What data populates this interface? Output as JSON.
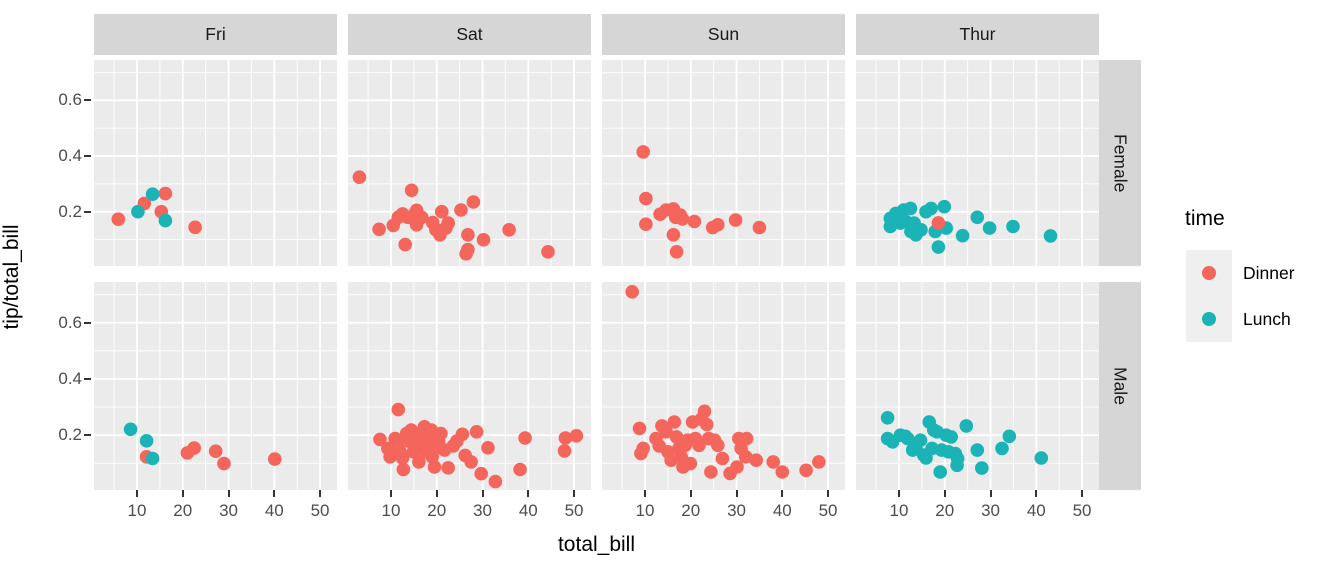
{
  "chart_data": {
    "type": "scatter",
    "title": "",
    "xlabel": "total_bill",
    "ylabel": "tip/total_bill",
    "facet_cols": [
      "Fri",
      "Sat",
      "Sun",
      "Thur"
    ],
    "facet_rows": [
      "Female",
      "Male"
    ],
    "x_ticks": [
      10,
      20,
      30,
      40,
      50
    ],
    "y_ticks": [
      0.2,
      0.4,
      0.6
    ],
    "x_minor": [
      5,
      15,
      25,
      35,
      45
    ],
    "y_minor": [
      0.1,
      0.3,
      0.5,
      0.7
    ],
    "xlim": [
      0.6,
      53.7
    ],
    "ylim": [
      0.005,
      0.745
    ],
    "grid": true,
    "legend": {
      "title": "time",
      "position": "right",
      "entries": [
        {
          "label": "Dinner",
          "color": "#F4655C"
        },
        {
          "label": "Lunch",
          "color": "#1BB3B5"
        }
      ]
    },
    "colors": {
      "panel_bg": "#EBEBEB",
      "strip_bg": "#D6D6D6",
      "grid": "#FFFFFF",
      "key_bg": "#EFEFEF",
      "tick_text": "#4D4D4D",
      "dinner": "#F4655C",
      "lunch": "#1BB3B5"
    },
    "facets": [
      {
        "row": "Female",
        "col": "Fri",
        "series": {
          "Dinner": [
            [
              5.9,
              0.173
            ],
            [
              11.6,
              0.23
            ],
            [
              15.3,
              0.2
            ],
            [
              16.2,
              0.265
            ],
            [
              22.7,
              0.144
            ]
          ],
          "Lunch": [
            [
              10.2,
              0.2
            ],
            [
              13.4,
              0.263
            ],
            [
              16.2,
              0.168
            ]
          ]
        }
      },
      {
        "row": "Female",
        "col": "Sat",
        "series": {
          "Dinner": [
            [
              3.1,
              0.324
            ],
            [
              14.5,
              0.277
            ],
            [
              7.4,
              0.137
            ],
            [
              10.5,
              0.151
            ],
            [
              11.6,
              0.18
            ],
            [
              12.5,
              0.192
            ],
            [
              13.7,
              0.18
            ],
            [
              15.1,
              0.191
            ],
            [
              15.6,
              0.205
            ],
            [
              16.7,
              0.18
            ],
            [
              15.6,
              0.153
            ],
            [
              13.1,
              0.082
            ],
            [
              19.1,
              0.161
            ],
            [
              19.8,
              0.135
            ],
            [
              20.7,
              0.117
            ],
            [
              21.1,
              0.2
            ],
            [
              22.0,
              0.141
            ],
            [
              22.5,
              0.159
            ],
            [
              25.3,
              0.206
            ],
            [
              28.0,
              0.235
            ],
            [
              26.8,
              0.117
            ],
            [
              26.8,
              0.064
            ],
            [
              26.4,
              0.049
            ],
            [
              30.2,
              0.099
            ],
            [
              35.8,
              0.135
            ],
            [
              44.3,
              0.056
            ]
          ],
          "Lunch": []
        }
      },
      {
        "row": "Female",
        "col": "Sun",
        "series": {
          "Dinner": [
            [
              9.6,
              0.415
            ],
            [
              10.2,
              0.247
            ],
            [
              10.2,
              0.155
            ],
            [
              13.3,
              0.191
            ],
            [
              14.6,
              0.206
            ],
            [
              16.2,
              0.21
            ],
            [
              16.7,
              0.18
            ],
            [
              17.7,
              0.188
            ],
            [
              18.2,
              0.174
            ],
            [
              16.2,
              0.117
            ],
            [
              16.9,
              0.056
            ],
            [
              20.8,
              0.165
            ],
            [
              24.8,
              0.143
            ],
            [
              25.9,
              0.153
            ],
            [
              29.8,
              0.17
            ],
            [
              35.0,
              0.143
            ]
          ],
          "Lunch": []
        }
      },
      {
        "row": "Female",
        "col": "Thur",
        "series": {
          "Lunch": [
            [
              8.1,
              0.176
            ],
            [
              8.1,
              0.147
            ],
            [
              9.3,
              0.194
            ],
            [
              10.3,
              0.159
            ],
            [
              11.0,
              0.206
            ],
            [
              11.5,
              0.165
            ],
            [
              12.5,
              0.212
            ],
            [
              12.6,
              0.129
            ],
            [
              13.3,
              0.159
            ],
            [
              13.7,
              0.117
            ],
            [
              14.8,
              0.135
            ],
            [
              15.9,
              0.2
            ],
            [
              17.0,
              0.212
            ],
            [
              17.9,
              0.129
            ],
            [
              19.9,
              0.218
            ],
            [
              20.3,
              0.141
            ],
            [
              18.6,
              0.073
            ],
            [
              23.9,
              0.114
            ],
            [
              27.1,
              0.18
            ],
            [
              29.8,
              0.141
            ],
            [
              34.9,
              0.147
            ],
            [
              43.1,
              0.113
            ]
          ],
          "Dinner": [
            [
              18.6,
              0.16
            ]
          ]
        }
      },
      {
        "row": "Male",
        "col": "Fri",
        "series": {
          "Dinner": [
            [
              12.1,
              0.123
            ],
            [
              21.0,
              0.137
            ],
            [
              22.5,
              0.154
            ],
            [
              27.2,
              0.143
            ],
            [
              29.0,
              0.099
            ],
            [
              40.1,
              0.115
            ]
          ],
          "Lunch": [
            [
              8.6,
              0.221
            ],
            [
              12.1,
              0.18
            ],
            [
              13.4,
              0.117
            ]
          ]
        }
      },
      {
        "row": "Male",
        "col": "Sat",
        "series": {
          "Dinner": [
            [
              7.6,
              0.185
            ],
            [
              9.3,
              0.153
            ],
            [
              9.8,
              0.123
            ],
            [
              11.6,
              0.291
            ],
            [
              10.9,
              0.188
            ],
            [
              11.2,
              0.164
            ],
            [
              12.0,
              0.141
            ],
            [
              12.5,
              0.119
            ],
            [
              12.7,
              0.078
            ],
            [
              13.4,
              0.206
            ],
            [
              13.8,
              0.179
            ],
            [
              14.4,
              0.218
            ],
            [
              14.9,
              0.141
            ],
            [
              15.2,
              0.164
            ],
            [
              15.8,
              0.194
            ],
            [
              16.1,
              0.105
            ],
            [
              16.7,
              0.212
            ],
            [
              17.3,
              0.23
            ],
            [
              17.6,
              0.141
            ],
            [
              18.0,
              0.164
            ],
            [
              18.5,
              0.19
            ],
            [
              18.8,
              0.218
            ],
            [
              19.0,
              0.123
            ],
            [
              19.5,
              0.087
            ],
            [
              19.8,
              0.153
            ],
            [
              20.4,
              0.179
            ],
            [
              20.9,
              0.206
            ],
            [
              21.7,
              0.147
            ],
            [
              22.5,
              0.084
            ],
            [
              23.6,
              0.162
            ],
            [
              24.4,
              0.179
            ],
            [
              25.6,
              0.203
            ],
            [
              26.2,
              0.128
            ],
            [
              27.5,
              0.105
            ],
            [
              28.7,
              0.212
            ],
            [
              29.7,
              0.063
            ],
            [
              31.2,
              0.155
            ],
            [
              32.8,
              0.035
            ],
            [
              38.2,
              0.078
            ],
            [
              39.3,
              0.19
            ],
            [
              48.1,
              0.19
            ],
            [
              47.9,
              0.144
            ],
            [
              50.5,
              0.198
            ]
          ],
          "Lunch": []
        }
      },
      {
        "row": "Male",
        "col": "Sun",
        "series": {
          "Dinner": [
            [
              7.2,
              0.71
            ],
            [
              8.8,
              0.224
            ],
            [
              9.6,
              0.153
            ],
            [
              9.1,
              0.135
            ],
            [
              12.4,
              0.188
            ],
            [
              13.1,
              0.162
            ],
            [
              13.7,
              0.233
            ],
            [
              14.6,
              0.212
            ],
            [
              15.0,
              0.141
            ],
            [
              15.7,
              0.111
            ],
            [
              16.4,
              0.247
            ],
            [
              16.9,
              0.194
            ],
            [
              17.4,
              0.153
            ],
            [
              17.9,
              0.123
            ],
            [
              18.3,
              0.087
            ],
            [
              18.8,
              0.164
            ],
            [
              19.3,
              0.182
            ],
            [
              19.9,
              0.099
            ],
            [
              20.4,
              0.247
            ],
            [
              21.0,
              0.188
            ],
            [
              21.8,
              0.164
            ],
            [
              22.3,
              0.257
            ],
            [
              23.0,
              0.285
            ],
            [
              23.5,
              0.238
            ],
            [
              23.9,
              0.188
            ],
            [
              24.4,
              0.069
            ],
            [
              25.2,
              0.182
            ],
            [
              25.9,
              0.164
            ],
            [
              26.9,
              0.117
            ],
            [
              28.6,
              0.064
            ],
            [
              30.1,
              0.087
            ],
            [
              30.5,
              0.188
            ],
            [
              31.0,
              0.153
            ],
            [
              32.0,
              0.123
            ],
            [
              32.2,
              0.188
            ],
            [
              34.3,
              0.111
            ],
            [
              38.0,
              0.105
            ],
            [
              40.0,
              0.069
            ],
            [
              45.2,
              0.075
            ],
            [
              48.0,
              0.105
            ]
          ],
          "Lunch": []
        }
      },
      {
        "row": "Male",
        "col": "Thur",
        "series": {
          "Lunch": [
            [
              7.5,
              0.262
            ],
            [
              7.5,
              0.188
            ],
            [
              8.6,
              0.176
            ],
            [
              10.3,
              0.2
            ],
            [
              11.4,
              0.196
            ],
            [
              11.9,
              0.188
            ],
            [
              13.0,
              0.147
            ],
            [
              13.7,
              0.153
            ],
            [
              14.7,
              0.182
            ],
            [
              15.4,
              0.129
            ],
            [
              15.9,
              0.119
            ],
            [
              16.6,
              0.247
            ],
            [
              17.2,
              0.153
            ],
            [
              17.6,
              0.218
            ],
            [
              18.3,
              0.212
            ],
            [
              19.0,
              0.069
            ],
            [
              19.3,
              0.147
            ],
            [
              20.3,
              0.2
            ],
            [
              20.8,
              0.141
            ],
            [
              21.4,
              0.194
            ],
            [
              22.3,
              0.135
            ],
            [
              22.8,
              0.117
            ],
            [
              22.7,
              0.093
            ],
            [
              24.7,
              0.233
            ],
            [
              27.1,
              0.147
            ],
            [
              28.1,
              0.083
            ],
            [
              32.5,
              0.153
            ],
            [
              34.1,
              0.196
            ],
            [
              41.1,
              0.119
            ]
          ],
          "Dinner": []
        }
      }
    ]
  }
}
